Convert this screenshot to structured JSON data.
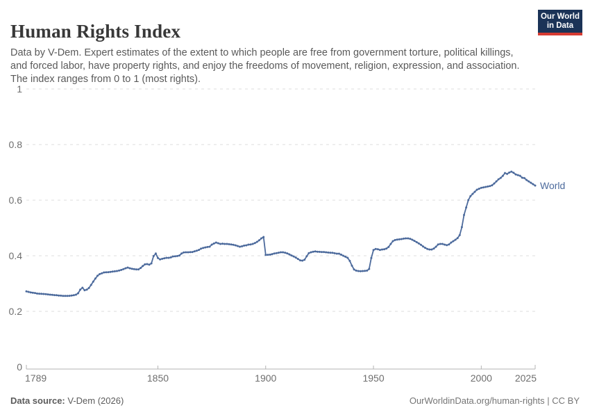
{
  "header": {
    "title": "Human Rights Index",
    "subtitle": "Data by V-Dem. Expert estimates of the extent to which people are free from government torture, political killings, and forced labor, have property rights, and enjoy the freedoms of movement, religion, expression, and association. The index ranges from 0 to 1 (most rights).",
    "logo_line1": "Our World",
    "logo_line2": "in Data"
  },
  "footer": {
    "source_label": "Data source:",
    "source_value": " V-Dem (2026)",
    "right_text": "OurWorldinData.org/human-rights | CC BY"
  },
  "colors": {
    "line": "#4c6a9c",
    "grid": "#dcdcdc",
    "axis": "#b3b3b3",
    "tick_text": "#6e6e6e",
    "logo_bg": "#1b3357",
    "logo_bar": "#d63b32"
  },
  "chart_data": {
    "type": "line",
    "title": "Human Rights Index",
    "xlabel": "",
    "ylabel": "",
    "xlim": [
      1789,
      2025
    ],
    "ylim": [
      0,
      1
    ],
    "grid": "horizontal-dashed",
    "legend_position": "end-of-line",
    "x_ticks": [
      1789,
      1850,
      1900,
      1950,
      2000,
      2025
    ],
    "y_ticks": [
      0,
      0.2,
      0.4,
      0.6,
      0.8,
      1
    ],
    "y_tick_labels": [
      "0",
      "0.2",
      "0.4",
      "0.6",
      "0.8",
      "1"
    ],
    "series": [
      {
        "name": "World",
        "points": [
          [
            1789,
            0.272
          ],
          [
            1790,
            0.27
          ],
          [
            1791,
            0.268
          ],
          [
            1792,
            0.267
          ],
          [
            1793,
            0.266
          ],
          [
            1794,
            0.264
          ],
          [
            1795,
            0.2635
          ],
          [
            1796,
            0.263
          ],
          [
            1797,
            0.2625
          ],
          [
            1798,
            0.262
          ],
          [
            1799,
            0.261
          ],
          [
            1800,
            0.26
          ],
          [
            1801,
            0.2595
          ],
          [
            1802,
            0.2585
          ],
          [
            1803,
            0.258
          ],
          [
            1804,
            0.257
          ],
          [
            1805,
            0.2565
          ],
          [
            1806,
            0.2555
          ],
          [
            1807,
            0.2555
          ],
          [
            1808,
            0.2555
          ],
          [
            1809,
            0.256
          ],
          [
            1810,
            0.257
          ],
          [
            1811,
            0.258
          ],
          [
            1812,
            0.26
          ],
          [
            1813,
            0.265
          ],
          [
            1814,
            0.278
          ],
          [
            1815,
            0.285
          ],
          [
            1816,
            0.276
          ],
          [
            1817,
            0.278
          ],
          [
            1818,
            0.284
          ],
          [
            1819,
            0.295
          ],
          [
            1820,
            0.307
          ],
          [
            1821,
            0.318
          ],
          [
            1822,
            0.328
          ],
          [
            1823,
            0.334
          ],
          [
            1824,
            0.337
          ],
          [
            1825,
            0.34
          ],
          [
            1826,
            0.3405
          ],
          [
            1827,
            0.341
          ],
          [
            1828,
            0.342
          ],
          [
            1829,
            0.343
          ],
          [
            1830,
            0.344
          ],
          [
            1831,
            0.345
          ],
          [
            1832,
            0.347
          ],
          [
            1833,
            0.349
          ],
          [
            1834,
            0.352
          ],
          [
            1835,
            0.355
          ],
          [
            1836,
            0.3575
          ],
          [
            1837,
            0.355
          ],
          [
            1838,
            0.353
          ],
          [
            1839,
            0.352
          ],
          [
            1840,
            0.351
          ],
          [
            1841,
            0.351
          ],
          [
            1842,
            0.356
          ],
          [
            1843,
            0.363
          ],
          [
            1844,
            0.369
          ],
          [
            1845,
            0.37
          ],
          [
            1846,
            0.368
          ],
          [
            1847,
            0.3725
          ],
          [
            1848,
            0.399
          ],
          [
            1849,
            0.408
          ],
          [
            1850,
            0.392
          ],
          [
            1851,
            0.387
          ],
          [
            1852,
            0.389
          ],
          [
            1853,
            0.391
          ],
          [
            1854,
            0.3925
          ],
          [
            1855,
            0.3925
          ],
          [
            1856,
            0.394
          ],
          [
            1857,
            0.3975
          ],
          [
            1858,
            0.398
          ],
          [
            1859,
            0.399
          ],
          [
            1860,
            0.401
          ],
          [
            1861,
            0.408
          ],
          [
            1862,
            0.412
          ],
          [
            1863,
            0.4125
          ],
          [
            1864,
            0.4125
          ],
          [
            1865,
            0.413
          ],
          [
            1866,
            0.4135
          ],
          [
            1867,
            0.416
          ],
          [
            1868,
            0.418
          ],
          [
            1869,
            0.421
          ],
          [
            1870,
            0.4255
          ],
          [
            1871,
            0.428
          ],
          [
            1872,
            0.43
          ],
          [
            1873,
            0.4315
          ],
          [
            1874,
            0.4325
          ],
          [
            1875,
            0.44
          ],
          [
            1876,
            0.444
          ],
          [
            1877,
            0.4475
          ],
          [
            1878,
            0.445
          ],
          [
            1879,
            0.4425
          ],
          [
            1880,
            0.4435
          ],
          [
            1881,
            0.4425
          ],
          [
            1882,
            0.4425
          ],
          [
            1883,
            0.4415
          ],
          [
            1884,
            0.4405
          ],
          [
            1885,
            0.4395
          ],
          [
            1886,
            0.4375
          ],
          [
            1887,
            0.435
          ],
          [
            1888,
            0.4325
          ],
          [
            1889,
            0.434
          ],
          [
            1890,
            0.4365
          ],
          [
            1891,
            0.4375
          ],
          [
            1892,
            0.44
          ],
          [
            1893,
            0.4405
          ],
          [
            1894,
            0.4425
          ],
          [
            1895,
            0.4455
          ],
          [
            1896,
            0.45
          ],
          [
            1897,
            0.4555
          ],
          [
            1898,
            0.4625
          ],
          [
            1899,
            0.4675
          ],
          [
            1900,
            0.403
          ],
          [
            1901,
            0.4035
          ],
          [
            1902,
            0.404
          ],
          [
            1903,
            0.406
          ],
          [
            1904,
            0.408
          ],
          [
            1905,
            0.4095
          ],
          [
            1906,
            0.411
          ],
          [
            1907,
            0.4125
          ],
          [
            1908,
            0.4125
          ],
          [
            1909,
            0.411
          ],
          [
            1910,
            0.4085
          ],
          [
            1911,
            0.405
          ],
          [
            1912,
            0.401
          ],
          [
            1913,
            0.3975
          ],
          [
            1914,
            0.3935
          ],
          [
            1915,
            0.3885
          ],
          [
            1916,
            0.3835
          ],
          [
            1917,
            0.3825
          ],
          [
            1918,
            0.3855
          ],
          [
            1919,
            0.398
          ],
          [
            1920,
            0.4095
          ],
          [
            1921,
            0.4125
          ],
          [
            1922,
            0.4145
          ],
          [
            1923,
            0.4155
          ],
          [
            1924,
            0.4145
          ],
          [
            1925,
            0.414
          ],
          [
            1926,
            0.4135
          ],
          [
            1927,
            0.4135
          ],
          [
            1928,
            0.4125
          ],
          [
            1929,
            0.4115
          ],
          [
            1930,
            0.411
          ],
          [
            1931,
            0.4105
          ],
          [
            1932,
            0.409
          ],
          [
            1933,
            0.4075
          ],
          [
            1934,
            0.4075
          ],
          [
            1935,
            0.404
          ],
          [
            1936,
            0.4
          ],
          [
            1937,
            0.3965
          ],
          [
            1938,
            0.3925
          ],
          [
            1939,
            0.3815
          ],
          [
            1940,
            0.3645
          ],
          [
            1941,
            0.3505
          ],
          [
            1942,
            0.3465
          ],
          [
            1943,
            0.345
          ],
          [
            1944,
            0.3445
          ],
          [
            1945,
            0.345
          ],
          [
            1946,
            0.3455
          ],
          [
            1947,
            0.3465
          ],
          [
            1948,
            0.3525
          ],
          [
            1949,
            0.392
          ],
          [
            1950,
            0.4205
          ],
          [
            1951,
            0.4245
          ],
          [
            1952,
            0.4235
          ],
          [
            1953,
            0.421
          ],
          [
            1954,
            0.4225
          ],
          [
            1955,
            0.4235
          ],
          [
            1956,
            0.426
          ],
          [
            1957,
            0.4315
          ],
          [
            1958,
            0.4425
          ],
          [
            1959,
            0.4525
          ],
          [
            1960,
            0.4565
          ],
          [
            1961,
            0.458
          ],
          [
            1962,
            0.459
          ],
          [
            1963,
            0.46
          ],
          [
            1964,
            0.4615
          ],
          [
            1965,
            0.4625
          ],
          [
            1966,
            0.4625
          ],
          [
            1967,
            0.461
          ],
          [
            1968,
            0.4575
          ],
          [
            1969,
            0.4535
          ],
          [
            1970,
            0.449
          ],
          [
            1971,
            0.4445
          ],
          [
            1972,
            0.4395
          ],
          [
            1973,
            0.4335
          ],
          [
            1974,
            0.4285
          ],
          [
            1975,
            0.4245
          ],
          [
            1976,
            0.4225
          ],
          [
            1977,
            0.4225
          ],
          [
            1978,
            0.426
          ],
          [
            1979,
            0.4325
          ],
          [
            1980,
            0.4405
          ],
          [
            1981,
            0.4425
          ],
          [
            1982,
            0.4425
          ],
          [
            1983,
            0.44
          ],
          [
            1984,
            0.438
          ],
          [
            1985,
            0.4405
          ],
          [
            1986,
            0.4475
          ],
          [
            1987,
            0.4525
          ],
          [
            1988,
            0.4575
          ],
          [
            1989,
            0.4635
          ],
          [
            1990,
            0.4745
          ],
          [
            1991,
            0.503
          ],
          [
            1992,
            0.5465
          ],
          [
            1993,
            0.5735
          ],
          [
            1994,
            0.6
          ],
          [
            1995,
            0.6145
          ],
          [
            1996,
            0.6225
          ],
          [
            1997,
            0.63
          ],
          [
            1998,
            0.6375
          ],
          [
            1999,
            0.641
          ],
          [
            2000,
            0.6445
          ],
          [
            2001,
            0.646
          ],
          [
            2002,
            0.6475
          ],
          [
            2003,
            0.649
          ],
          [
            2004,
            0.6505
          ],
          [
            2005,
            0.6535
          ],
          [
            2006,
            0.66
          ],
          [
            2007,
            0.6675
          ],
          [
            2008,
            0.675
          ],
          [
            2009,
            0.68
          ],
          [
            2010,
            0.6875
          ],
          [
            2011,
            0.6975
          ],
          [
            2012,
            0.6945
          ],
          [
            2013,
            0.6995
          ],
          [
            2014,
            0.7025
          ],
          [
            2015,
            0.6985
          ],
          [
            2016,
            0.6925
          ],
          [
            2017,
            0.69
          ],
          [
            2018,
            0.6875
          ],
          [
            2019,
            0.6805
          ],
          [
            2020,
            0.6795
          ],
          [
            2021,
            0.6725
          ],
          [
            2022,
            0.6675
          ],
          [
            2023,
            0.6625
          ],
          [
            2024,
            0.6575
          ],
          [
            2025,
            0.6525
          ]
        ]
      }
    ]
  }
}
